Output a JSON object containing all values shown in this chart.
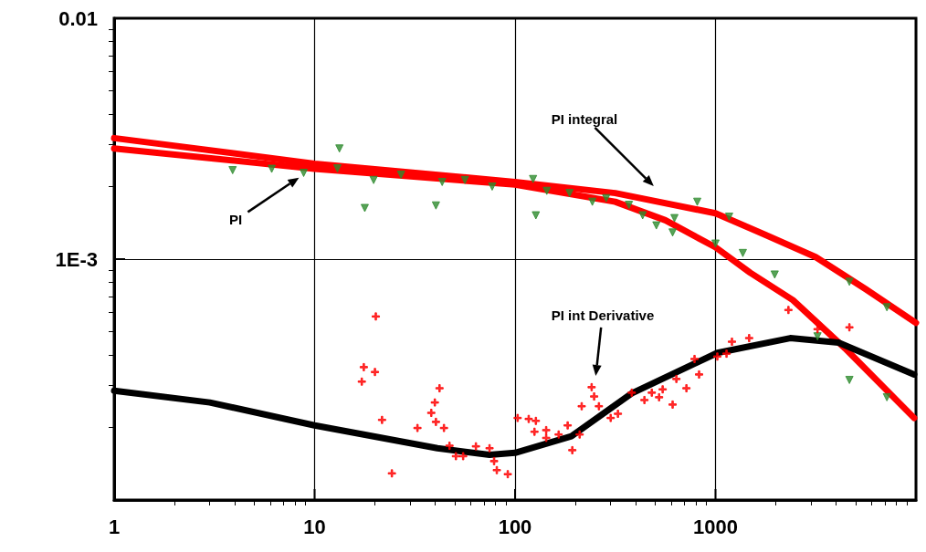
{
  "chart_data": {
    "type": "line",
    "log": "xy",
    "xlim": [
      1,
      10000
    ],
    "ylim": [
      0.0001,
      0.01
    ],
    "xticks": [
      1,
      10,
      100,
      1000
    ],
    "yticks": [
      {
        "value": 0.0001,
        "label": null
      },
      {
        "value": 0.001,
        "label": "1E-3"
      },
      0.01
    ],
    "grid": true,
    "series": [
      {
        "type": "scatter",
        "marker": "triangle",
        "color": "#2e8b2e",
        "x": [
          3.9,
          6.11,
          8.82,
          13.3,
          13.0,
          17.8,
          19.7,
          27.0,
          40.3,
          43.3,
          56.2,
          76.9,
          123,
          127,
          144,
          187,
          243,
          285,
          370,
          433,
          507,
          624,
          611,
          811,
          1000,
          1170,
          1369,
          1974,
          3228,
          4656,
          4656,
          7161,
          7161
        ],
        "values": [
          0.00234,
          0.00237,
          0.00228,
          0.00288,
          0.00238,
          0.00163,
          0.00213,
          0.00224,
          0.00167,
          0.00209,
          0.00213,
          0.002,
          0.00215,
          0.00152,
          0.00192,
          0.00188,
          0.00173,
          0.00179,
          0.00168,
          0.00152,
          0.00138,
          0.00148,
          0.00129,
          0.00173,
          0.00116,
          0.0015,
          0.00106,
          0.000863,
          0.000478,
          0.000805,
          0.000315,
          0.000631,
          0.000267
        ]
      },
      {
        "type": "scatter",
        "marker": "cross",
        "color": "#ff0000",
        "x": [
          20.2,
          17.6,
          17.2,
          20.0,
          21.7,
          24.3,
          32.6,
          42.0,
          39.8,
          38.2,
          40.3,
          44.2,
          47.1,
          50.7,
          55.1,
          63.8,
          74.6,
          78.6,
          81.1,
          92.0,
          103,
          117,
          127,
          125,
          143,
          143,
          165,
          183,
          193,
          210,
          215,
          241,
          248,
          262,
          300,
          326,
          382,
          442,
          481,
          523,
          545,
          611,
          638,
          716,
          786,
          828,
          1021,
          1135,
          1208,
          1472,
          2311,
          3228,
          4656
        ],
        "values": [
          0.000578,
          0.000356,
          0.00031,
          0.00034,
          0.000215,
          0.000129,
          0.000199,
          0.000291,
          0.000254,
          0.00023,
          0.000211,
          0.000199,
          0.000168,
          0.000152,
          0.000152,
          0.000167,
          0.000164,
          0.000145,
          0.000133,
          0.000128,
          0.000219,
          0.000217,
          0.000213,
          0.000192,
          0.000195,
          0.000181,
          0.000187,
          0.000204,
          0.000161,
          0.000187,
          0.000245,
          0.000294,
          0.000269,
          0.000245,
          0.000219,
          0.000228,
          0.000279,
          0.00026,
          0.000279,
          0.000267,
          0.000288,
          0.000249,
          0.000318,
          0.000291,
          0.000385,
          0.000332,
          0.000394,
          0.000405,
          0.000454,
          0.00047,
          0.000615,
          0.000512,
          0.000521
        ]
      },
      {
        "marker": "none",
        "color": "#ff0000",
        "x": [
          1,
          10,
          100,
          316,
          1000,
          1778,
          3162,
          5623,
          10000
        ],
        "values": [
          0.00318,
          0.00249,
          0.00209,
          0.00188,
          0.00155,
          0.00126,
          0.00102,
          0.00075,
          0.000544
        ]
      },
      {
        "marker": "none",
        "color": "#ff0000",
        "x": [
          1,
          10,
          100,
          316,
          562,
          1000,
          1489,
          2432,
          4419,
          9795
        ],
        "values": [
          0.00288,
          0.00237,
          0.00204,
          0.00173,
          0.00145,
          0.00112,
          0.000878,
          0.000676,
          0.000427,
          0.000219
        ]
      },
      {
        "marker": "none",
        "color": "#000000",
        "x": [
          1,
          3.0,
          10,
          41,
          74.6,
          100,
          191,
          382,
          1021,
          2360,
          4108,
          9795
        ],
        "values": [
          0.000284,
          0.000254,
          0.000204,
          0.000164,
          0.000154,
          0.000157,
          0.000184,
          0.000277,
          0.000408,
          0.00047,
          0.00045,
          0.000332
        ]
      }
    ],
    "annotations": [
      "PI integral",
      "PI",
      "PI int Derivative"
    ]
  }
}
